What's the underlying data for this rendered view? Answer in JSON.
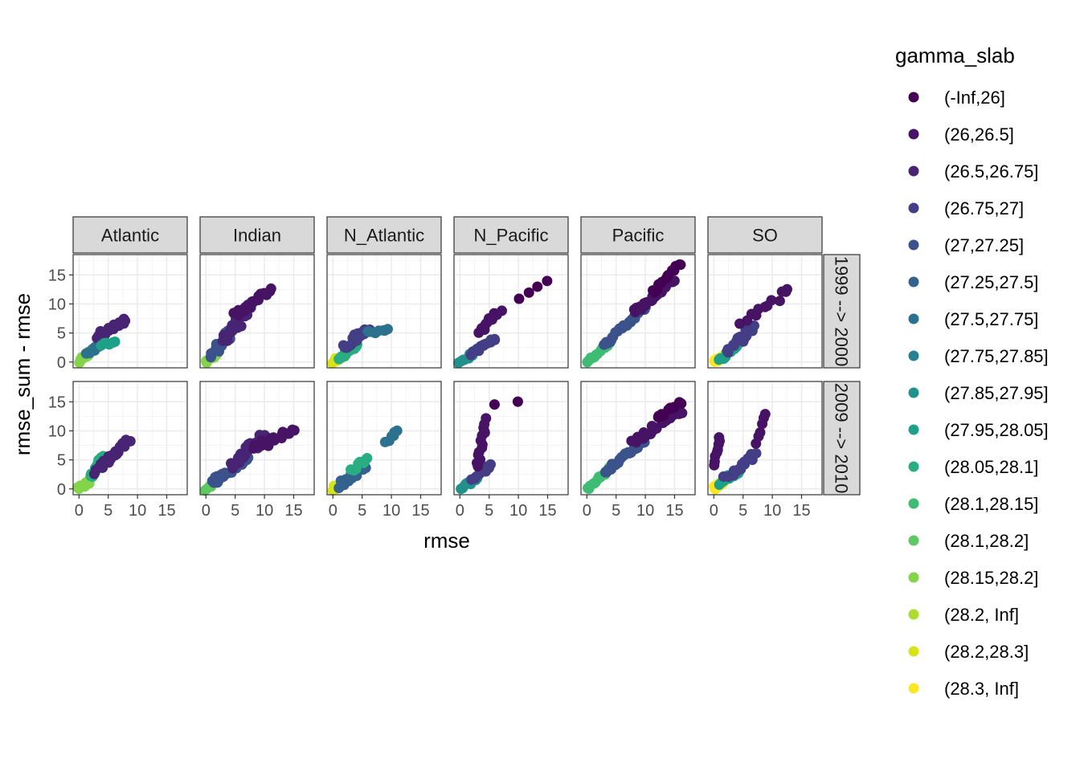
{
  "chart_data": {
    "type": "scatter",
    "facet_columns": [
      "Atlantic",
      "Indian",
      "N_Atlantic",
      "N_Pacific",
      "Pacific",
      "SO"
    ],
    "facet_rows": [
      "1999 --> 2000",
      "2009 --> 2010"
    ],
    "xlabel": "rmse",
    "ylabel": "rmse_sum - rmse",
    "xlim": [
      -1,
      18.5
    ],
    "ylim": [
      -1,
      18.5
    ],
    "x_ticks": [
      "0",
      "5",
      "10",
      "15"
    ],
    "y_ticks": [
      "0",
      "5",
      "10",
      "15"
    ],
    "tick_values": [
      0,
      5,
      10,
      15
    ],
    "grid": true,
    "legend": {
      "title": "gamma_slab",
      "position": "right",
      "entries": [
        {
          "label": "(-Inf,26]",
          "color": "#440154"
        },
        {
          "label": "(26,26.5]",
          "color": "#471365"
        },
        {
          "label": "(26.5,26.75]",
          "color": "#482475"
        },
        {
          "label": "(26.75,27]",
          "color": "#433e85"
        },
        {
          "label": "(27,27.25]",
          "color": "#3b528b"
        },
        {
          "label": "(27.25,27.5]",
          "color": "#33638d"
        },
        {
          "label": "(27.5,27.75]",
          "color": "#2c728e"
        },
        {
          "label": "(27.75,27.85]",
          "color": "#26828e"
        },
        {
          "label": "(27.85,27.95]",
          "color": "#21918c"
        },
        {
          "label": "(27.95,28.05]",
          "color": "#1fa088"
        },
        {
          "label": "(28.05,28.1]",
          "color": "#28ae80"
        },
        {
          "label": "(28.1,28.15]",
          "color": "#3fbc73"
        },
        {
          "label": "(28.1,28.2]",
          "color": "#5ec962"
        },
        {
          "label": "(28.15,28.2]",
          "color": "#84d44b"
        },
        {
          "label": "(28.2, Inf]",
          "color": "#addc30"
        },
        {
          "label": "(28.2,28.3]",
          "color": "#d8e219"
        },
        {
          "label": "(28.3, Inf]",
          "color": "#fde725"
        }
      ]
    },
    "panels": [
      {
        "column": "Atlantic",
        "row": "1999 --> 2000",
        "segments": [
          {
            "from": [
              0,
              0
            ],
            "to": [
              2,
              1.8
            ],
            "color_idx": 13,
            "n": 10,
            "spread": 0.5
          },
          {
            "from": [
              1.5,
              1.5
            ],
            "to": [
              4,
              3.5
            ],
            "color_idx": 6,
            "n": 14,
            "spread": 0.7
          },
          {
            "from": [
              3,
              4.5
            ],
            "to": [
              8,
              7
            ],
            "color_idx": 2,
            "n": 28,
            "spread": 0.8
          },
          {
            "from": [
              4,
              3
            ],
            "to": [
              6,
              3.2
            ],
            "color_idx": 9,
            "n": 8,
            "spread": 0.5
          }
        ]
      },
      {
        "column": "Indian",
        "row": "1999 --> 2000",
        "segments": [
          {
            "from": [
              0,
              0
            ],
            "to": [
              2,
              1.5
            ],
            "color_idx": 13,
            "n": 10,
            "spread": 0.5
          },
          {
            "from": [
              1,
              1
            ],
            "to": [
              5,
              6
            ],
            "color_idx": 4,
            "n": 24,
            "spread": 1.2
          },
          {
            "from": [
              3,
              4
            ],
            "to": [
              8,
              10
            ],
            "color_idx": 2,
            "n": 30,
            "spread": 1.3
          },
          {
            "from": [
              5,
              8
            ],
            "to": [
              11,
              12.5
            ],
            "color_idx": 1,
            "n": 18,
            "spread": 0.9
          }
        ]
      },
      {
        "column": "N_Atlantic",
        "row": "1999 --> 2000",
        "segments": [
          {
            "from": [
              0,
              0
            ],
            "to": [
              2,
              1
            ],
            "color_idx": 15,
            "n": 10,
            "spread": 0.5
          },
          {
            "from": [
              1,
              0.5
            ],
            "to": [
              4,
              3
            ],
            "color_idx": 10,
            "n": 14,
            "spread": 0.8
          },
          {
            "from": [
              2,
              2.5
            ],
            "to": [
              6,
              6
            ],
            "color_idx": 3,
            "n": 20,
            "spread": 0.9
          },
          {
            "from": [
              6,
              5
            ],
            "to": [
              9.5,
              5.5
            ],
            "color_idx": 6,
            "n": 8,
            "spread": 0.5
          }
        ]
      },
      {
        "column": "N_Pacific",
        "row": "1999 --> 2000",
        "segments": [
          {
            "from": [
              0,
              0
            ],
            "to": [
              3,
              2
            ],
            "color_idx": 8,
            "n": 10,
            "spread": 0.5
          },
          {
            "from": [
              2,
              1.5
            ],
            "to": [
              6,
              4
            ],
            "color_idx": 3,
            "n": 14,
            "spread": 0.6
          },
          {
            "from": [
              3,
              5
            ],
            "to": [
              7,
              9
            ],
            "color_idx": 1,
            "n": 10,
            "spread": 0.7
          },
          {
            "from": [
              10,
              11
            ],
            "to": [
              15,
              14
            ],
            "color_idx": 0,
            "n": 4,
            "spread": 0.3
          }
        ]
      },
      {
        "column": "Pacific",
        "row": "1999 --> 2000",
        "segments": [
          {
            "from": [
              0,
              0
            ],
            "to": [
              4,
              3.5
            ],
            "color_idx": 11,
            "n": 14,
            "spread": 0.4
          },
          {
            "from": [
              3,
              3
            ],
            "to": [
              10,
              9.5
            ],
            "color_idx": 4,
            "n": 26,
            "spread": 0.5
          },
          {
            "from": [
              8,
              8.5
            ],
            "to": [
              15,
              14
            ],
            "color_idx": 1,
            "n": 24,
            "spread": 0.7
          },
          {
            "from": [
              11,
              12
            ],
            "to": [
              16,
              17
            ],
            "color_idx": 0,
            "n": 14,
            "spread": 0.6
          }
        ]
      },
      {
        "column": "SO",
        "row": "1999 --> 2000",
        "segments": [
          {
            "from": [
              0,
              0
            ],
            "to": [
              2,
              1.2
            ],
            "color_idx": 16,
            "n": 16,
            "spread": 0.5
          },
          {
            "from": [
              1,
              0.5
            ],
            "to": [
              4,
              3
            ],
            "color_idx": 9,
            "n": 14,
            "spread": 0.7
          },
          {
            "from": [
              2,
              2
            ],
            "to": [
              7,
              6
            ],
            "color_idx": 3,
            "n": 18,
            "spread": 1.0
          },
          {
            "from": [
              5,
              7
            ],
            "to": [
              13,
              12.5
            ],
            "color_idx": 1,
            "n": 12,
            "spread": 1.2
          }
        ]
      },
      {
        "column": "Atlantic",
        "row": "2009 --> 2010",
        "segments": [
          {
            "from": [
              0,
              0
            ],
            "to": [
              2,
              1.5
            ],
            "color_idx": 13,
            "n": 10,
            "spread": 0.5
          },
          {
            "from": [
              2,
              2
            ],
            "to": [
              4,
              6
            ],
            "color_idx": 10,
            "n": 12,
            "spread": 0.6
          },
          {
            "from": [
              3,
              3
            ],
            "to": [
              8.5,
              8.5
            ],
            "color_idx": 2,
            "n": 26,
            "spread": 0.8
          }
        ]
      },
      {
        "column": "Indian",
        "row": "2009 --> 2010",
        "segments": [
          {
            "from": [
              0,
              0
            ],
            "to": [
              2,
              1.5
            ],
            "color_idx": 12,
            "n": 10,
            "spread": 0.5
          },
          {
            "from": [
              1,
              1
            ],
            "to": [
              7,
              5
            ],
            "color_idx": 4,
            "n": 24,
            "spread": 1.0
          },
          {
            "from": [
              4,
              4
            ],
            "to": [
              10,
              9
            ],
            "color_idx": 2,
            "n": 26,
            "spread": 1.2
          },
          {
            "from": [
              8,
              7
            ],
            "to": [
              15,
              10
            ],
            "color_idx": 1,
            "n": 18,
            "spread": 1.2
          }
        ]
      },
      {
        "column": "N_Atlantic",
        "row": "2009 --> 2010",
        "segments": [
          {
            "from": [
              0,
              0
            ],
            "to": [
              2,
              1
            ],
            "color_idx": 15,
            "n": 12,
            "spread": 0.6
          },
          {
            "from": [
              1,
              0.5
            ],
            "to": [
              6,
              4
            ],
            "color_idx": 5,
            "n": 20,
            "spread": 0.9
          },
          {
            "from": [
              3,
              3
            ],
            "to": [
              6,
              5.5
            ],
            "color_idx": 10,
            "n": 8,
            "spread": 0.6
          },
          {
            "from": [
              9,
              8
            ],
            "to": [
              11,
              10
            ],
            "color_idx": 6,
            "n": 6,
            "spread": 0.5
          }
        ]
      },
      {
        "column": "N_Pacific",
        "row": "2009 --> 2010",
        "segments": [
          {
            "from": [
              0,
              0
            ],
            "to": [
              3,
              2
            ],
            "color_idx": 8,
            "n": 10,
            "spread": 0.5
          },
          {
            "from": [
              2,
              1.5
            ],
            "to": [
              5,
              4
            ],
            "color_idx": 3,
            "n": 12,
            "spread": 0.6
          },
          {
            "from": [
              3,
              4
            ],
            "to": [
              4.5,
              12
            ],
            "color_idx": 1,
            "n": 14,
            "spread": 0.5
          },
          {
            "from": [
              6,
              14.5
            ],
            "to": [
              10,
              15
            ],
            "color_idx": 0,
            "n": 2,
            "spread": 0.2
          }
        ]
      },
      {
        "column": "Pacific",
        "row": "2009 --> 2010",
        "segments": [
          {
            "from": [
              0,
              0
            ],
            "to": [
              4,
              3.5
            ],
            "color_idx": 11,
            "n": 14,
            "spread": 0.4
          },
          {
            "from": [
              3,
              3
            ],
            "to": [
              10,
              8.5
            ],
            "color_idx": 4,
            "n": 24,
            "spread": 0.6
          },
          {
            "from": [
              8,
              8
            ],
            "to": [
              16,
              13.5
            ],
            "color_idx": 1,
            "n": 24,
            "spread": 0.8
          },
          {
            "from": [
              12,
              12
            ],
            "to": [
              16,
              15
            ],
            "color_idx": 0,
            "n": 10,
            "spread": 0.6
          }
        ]
      },
      {
        "column": "SO",
        "row": "2009 --> 2010",
        "segments": [
          {
            "from": [
              0,
              0
            ],
            "to": [
              2,
              1.5
            ],
            "color_idx": 16,
            "n": 14,
            "spread": 0.5
          },
          {
            "from": [
              1,
              1
            ],
            "to": [
              4,
              3
            ],
            "color_idx": 9,
            "n": 12,
            "spread": 0.6
          },
          {
            "from": [
              2,
              2
            ],
            "to": [
              7,
              6
            ],
            "color_idx": 3,
            "n": 18,
            "spread": 0.9
          },
          {
            "from": [
              0,
              4
            ],
            "to": [
              1,
              9
            ],
            "color_idx": 1,
            "n": 8,
            "spread": 0.4
          },
          {
            "from": [
              7,
              8
            ],
            "to": [
              9,
              13
            ],
            "color_idx": 1,
            "n": 6,
            "spread": 0.5
          }
        ]
      }
    ]
  }
}
